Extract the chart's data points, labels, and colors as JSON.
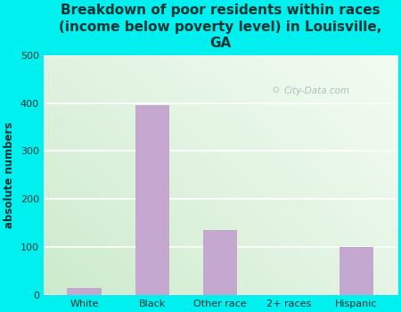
{
  "categories": [
    "White",
    "Black",
    "Other race",
    "2+ races",
    "Hispanic"
  ],
  "values": [
    15,
    395,
    135,
    0,
    100
  ],
  "bar_color": "#c4a8d0",
  "background_color": "#00f0f0",
  "plot_bg_color_topleft": "#d6edd6",
  "plot_bg_color_topright": "#f5faf5",
  "plot_bg_color_bottom": "#c8e8c8",
  "title": "Breakdown of poor residents within races\n(income below poverty level) in Louisville,\nGA",
  "title_color": "#003333",
  "title_fontsize": 11.0,
  "ylabel": "absolute numbers",
  "ylabel_color": "#003333",
  "ylabel_fontsize": 8.5,
  "tick_color": "#003333",
  "tick_fontsize": 8.0,
  "ylim": [
    0,
    500
  ],
  "yticks": [
    0,
    100,
    200,
    300,
    400,
    500
  ],
  "grid_color": "#ffffff",
  "grid_linewidth": 1.2,
  "watermark": "City-Data.com",
  "watermark_color": "#a0b8b8",
  "bar_width": 0.5
}
